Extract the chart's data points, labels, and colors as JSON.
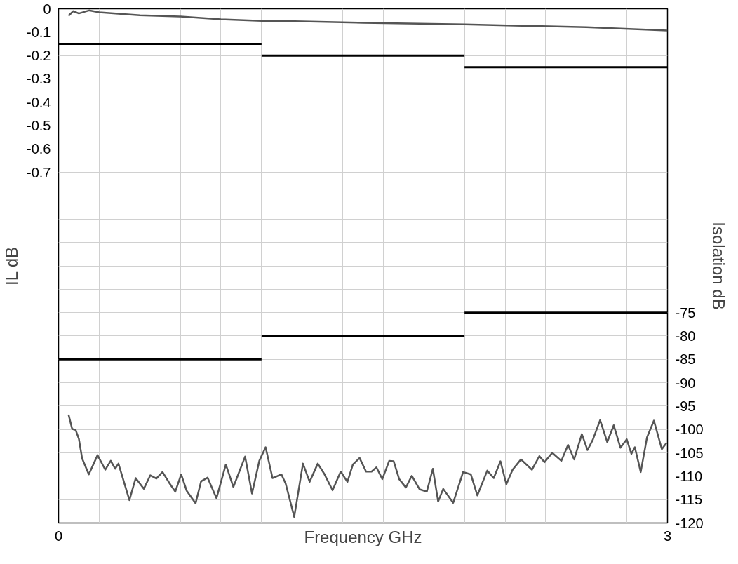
{
  "chart_data": {
    "type": "line",
    "xlabel": "Frequency GHz",
    "ylabel": "IL dB",
    "y2label": "Isolation dB",
    "xlim": [
      0,
      3
    ],
    "xticks": [
      0,
      {
        "value": 0.2,
        "label": null
      },
      {
        "value": 0.4,
        "label": null
      },
      {
        "value": 0.6,
        "label": null
      },
      {
        "value": 0.8,
        "label": null
      },
      {
        "value": 1.0,
        "label": null
      },
      {
        "value": 1.2,
        "label": null
      },
      {
        "value": 1.4,
        "label": null
      },
      {
        "value": 1.6,
        "label": null
      },
      {
        "value": 1.8,
        "label": null
      },
      {
        "value": 2.0,
        "label": null
      },
      {
        "value": 2.2,
        "label": null
      },
      {
        "value": 2.4,
        "label": null
      },
      {
        "value": 2.6,
        "label": null
      },
      {
        "value": 2.8,
        "label": null
      },
      3
    ],
    "ylim": [
      -2.2,
      0
    ],
    "yticks": [
      0,
      -0.1,
      -0.2,
      -0.3,
      -0.4,
      -0.5,
      -0.6,
      -0.7,
      {
        "value": -0.8,
        "label": null
      },
      {
        "value": -0.9,
        "label": null
      },
      {
        "value": -1.0,
        "label": null
      },
      {
        "value": -1.1,
        "label": null
      },
      {
        "value": -1.2,
        "label": null
      },
      {
        "value": -1.3,
        "label": null
      },
      {
        "value": -1.4,
        "label": null
      },
      {
        "value": -1.5,
        "label": null
      },
      {
        "value": -1.6,
        "label": null
      },
      {
        "value": -1.7,
        "label": null
      },
      {
        "value": -1.8,
        "label": null
      },
      {
        "value": -1.9,
        "label": null
      },
      {
        "value": -2.0,
        "label": null
      },
      {
        "value": -2.1,
        "label": null
      },
      {
        "value": -2.2,
        "label": null
      }
    ],
    "y2lim": [
      -120,
      -10
    ],
    "y2ticks": [
      -75,
      -80,
      -85,
      -90,
      -95,
      -100,
      -105,
      -110,
      -115,
      -120
    ],
    "grid": true,
    "marker": "none",
    "line_style": "solid",
    "series": [
      {
        "color": "#555555",
        "x": [
          0.049,
          0.072,
          0.1,
          0.15,
          0.2,
          0.4,
          0.6,
          0.8,
          1.0,
          1.085,
          1.5,
          2.0,
          2.6,
          3.0
        ],
        "values": [
          -0.03,
          -0.01,
          -0.02,
          -0.007,
          -0.015,
          -0.028,
          -0.033,
          -0.045,
          -0.052,
          -0.052,
          -0.06,
          -0.067,
          -0.079,
          -0.093
        ]
      },
      {
        "color": "#000000",
        "x": [
          0,
          1
        ],
        "values": [
          -0.15,
          -0.15
        ]
      },
      {
        "color": "#000000",
        "x": [
          1,
          2
        ],
        "values": [
          -0.2,
          -0.2
        ]
      },
      {
        "color": "#000000",
        "x": [
          2,
          3
        ],
        "values": [
          -0.25,
          -0.25
        ]
      },
      {
        "color": "#000000",
        "axis": "y2",
        "x": [
          0,
          1
        ],
        "values": [
          -85,
          -85
        ]
      },
      {
        "color": "#000000",
        "axis": "y2",
        "x": [
          1,
          2
        ],
        "values": [
          -80,
          -80
        ]
      },
      {
        "color": "#000000",
        "axis": "y2",
        "x": [
          2,
          3
        ],
        "values": [
          -75,
          -75
        ]
      },
      {
        "color": "#555555",
        "axis": "y2",
        "x": [
          0.049,
          0.067,
          0.084,
          0.1,
          0.116,
          0.149,
          0.192,
          0.23,
          0.257,
          0.279,
          0.295,
          0.349,
          0.38,
          0.42,
          0.452,
          0.482,
          0.512,
          0.545,
          0.575,
          0.604,
          0.631,
          0.675,
          0.702,
          0.734,
          0.778,
          0.824,
          0.861,
          0.919,
          0.953,
          0.989,
          1.02,
          1.054,
          1.098,
          1.119,
          1.161,
          1.204,
          1.237,
          1.277,
          1.309,
          1.35,
          1.39,
          1.423,
          1.45,
          1.483,
          1.515,
          1.542,
          1.566,
          1.595,
          1.629,
          1.651,
          1.678,
          1.711,
          1.74,
          1.779,
          1.814,
          1.844,
          1.87,
          1.895,
          1.944,
          1.993,
          2.031,
          2.063,
          2.112,
          2.144,
          2.177,
          2.206,
          2.237,
          2.278,
          2.332,
          2.369,
          2.394,
          2.432,
          2.477,
          2.51,
          2.54,
          2.578,
          2.606,
          2.632,
          2.668,
          2.703,
          2.735,
          2.768,
          2.799,
          2.822,
          2.839,
          2.868,
          2.899,
          2.933,
          2.972,
          2.996
        ],
        "values": [
          -96.8,
          -99.9,
          -100.1,
          -102.0,
          -106.2,
          -109.6,
          -105.5,
          -108.6,
          -106.7,
          -108.4,
          -107.3,
          -115.1,
          -110.4,
          -112.7,
          -109.8,
          -110.5,
          -109.1,
          -111.4,
          -113.3,
          -109.6,
          -113.1,
          -115.8,
          -111.1,
          -110.3,
          -114.7,
          -107.5,
          -112.3,
          -105.8,
          -113.7,
          -106.7,
          -103.8,
          -110.4,
          -109.6,
          -111.6,
          -118.7,
          -107.3,
          -111.2,
          -107.3,
          -109.5,
          -113.0,
          -109.0,
          -111.2,
          -107.5,
          -106.1,
          -109.0,
          -109.0,
          -108.1,
          -110.6,
          -106.7,
          -106.8,
          -110.6,
          -112.4,
          -109.9,
          -112.8,
          -113.3,
          -108.4,
          -115.4,
          -112.7,
          -115.7,
          -109.1,
          -109.6,
          -114.1,
          -108.8,
          -110.4,
          -106.8,
          -111.7,
          -108.6,
          -106.4,
          -108.6,
          -105.7,
          -107.0,
          -105.0,
          -106.7,
          -103.3,
          -106.4,
          -101.0,
          -104.4,
          -102.2,
          -98.0,
          -102.7,
          -99.1,
          -103.9,
          -102.1,
          -105.2,
          -103.8,
          -109.1,
          -101.7,
          -98.1,
          -104.2,
          -102.8
        ]
      }
    ]
  }
}
